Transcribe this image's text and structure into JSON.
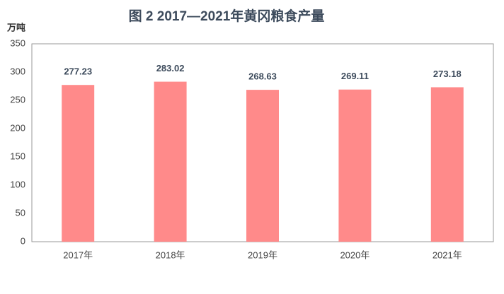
{
  "chart_data": {
    "type": "bar",
    "title": "图 2  2017—2021年黄冈粮食产量",
    "y_label": "万吨",
    "categories": [
      "2017年",
      "2018年",
      "2019年",
      "2020年",
      "2021年"
    ],
    "values": [
      277.23,
      283.02,
      268.63,
      269.11,
      273.18
    ],
    "color": "#ff8a8a",
    "ylim": [
      0,
      350
    ],
    "yticks": [
      0,
      50,
      100,
      150,
      200,
      250,
      300,
      350
    ],
    "grid": false
  }
}
